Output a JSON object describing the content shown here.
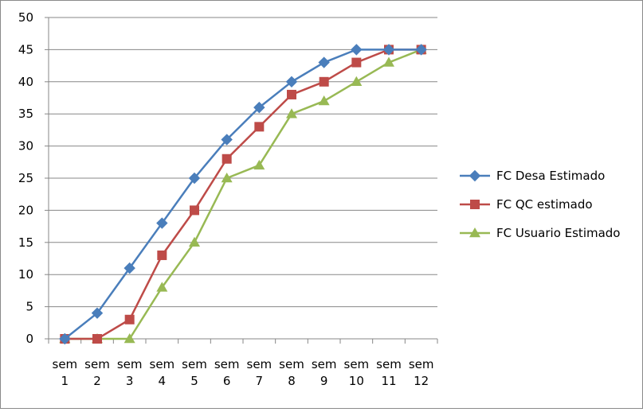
{
  "chart_data": {
    "type": "line",
    "title": "",
    "xlabel": "",
    "ylabel": "",
    "ylim": [
      0,
      50
    ],
    "yticks": [
      0,
      5,
      10,
      15,
      20,
      25,
      30,
      35,
      40,
      45,
      50
    ],
    "grid": "horizontal",
    "legend_position": "right",
    "categories": [
      [
        "sem",
        "1"
      ],
      [
        "sem",
        "2"
      ],
      [
        "sem",
        "3"
      ],
      [
        "sem",
        "4"
      ],
      [
        "sem",
        "5"
      ],
      [
        "sem",
        "6"
      ],
      [
        "sem",
        "7"
      ],
      [
        "sem",
        "8"
      ],
      [
        "sem",
        "9"
      ],
      [
        "sem",
        "10"
      ],
      [
        "sem",
        "11"
      ],
      [
        "sem",
        "12"
      ]
    ],
    "series": [
      {
        "name": "FC Desa Estimado",
        "color": "#4a7ebb",
        "marker": "diamond",
        "values": [
          0,
          4,
          11,
          18,
          25,
          31,
          36,
          40,
          43,
          45,
          45,
          45
        ]
      },
      {
        "name": "FC QC estimado",
        "color": "#be4b48",
        "marker": "square",
        "values": [
          0,
          0,
          3,
          13,
          20,
          28,
          33,
          38,
          40,
          43,
          45,
          45
        ]
      },
      {
        "name": "FC Usuario Estimado",
        "color": "#98b954",
        "marker": "triangle",
        "values": [
          0,
          0,
          0,
          8,
          15,
          25,
          27,
          35,
          37,
          40,
          43,
          45
        ]
      }
    ]
  }
}
